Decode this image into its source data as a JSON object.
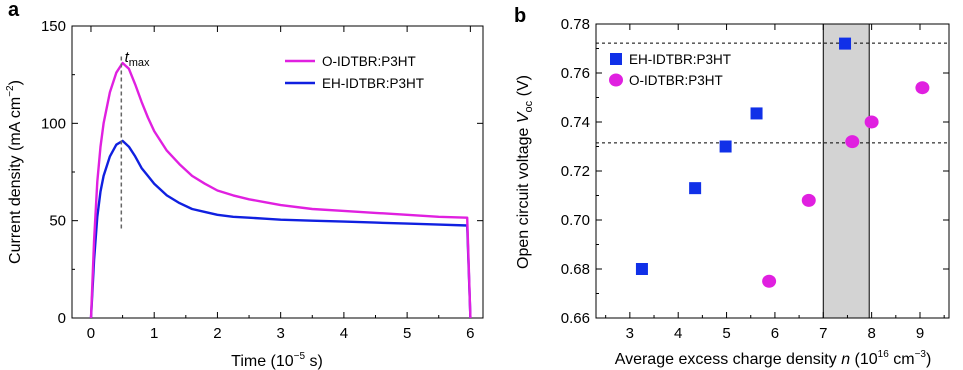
{
  "chart_data": [
    {
      "panel": "a",
      "type": "line",
      "xlabel": "Time (10−5 s)",
      "xlabel_parts": {
        "main": "Time (10",
        "exp": "−5",
        "tail": " s)"
      },
      "ylabel": "Current density (mA cm−2)",
      "ylabel_parts": {
        "main": "Current density (mA cm",
        "exp": "−2",
        "tail": ")"
      },
      "xlim": [
        -0.3,
        6.2
      ],
      "ylim": [
        0,
        150
      ],
      "xticks": [
        0,
        1,
        2,
        3,
        4,
        5,
        6
      ],
      "yticks": [
        0,
        50,
        100,
        150
      ],
      "annotation": {
        "text": "t",
        "sub": "max",
        "x": 0.5,
        "y": 135,
        "line_x": 0.48,
        "line_y": [
          46,
          135
        ]
      },
      "legend_position": "top-right",
      "series": [
        {
          "name": "O-IDTBR:P3HT",
          "color": "#e020e0",
          "x": [
            0,
            0.05,
            0.1,
            0.15,
            0.2,
            0.3,
            0.4,
            0.5,
            0.6,
            0.7,
            0.8,
            0.9,
            1.0,
            1.2,
            1.4,
            1.6,
            1.8,
            2.0,
            2.25,
            2.5,
            2.75,
            3.0,
            3.5,
            4.0,
            4.5,
            5.0,
            5.5,
            5.95,
            6.0
          ],
          "y": [
            0,
            40,
            70,
            88,
            100,
            116,
            126,
            131,
            128,
            120,
            111,
            103,
            96,
            86,
            79,
            73,
            69,
            65.5,
            63,
            61,
            59.5,
            58,
            56,
            55,
            54,
            53,
            52,
            51.5,
            0
          ]
        },
        {
          "name": "EH-IDTBR:P3HT",
          "color": "#1020e0",
          "x": [
            0,
            0.05,
            0.1,
            0.15,
            0.2,
            0.3,
            0.4,
            0.5,
            0.6,
            0.7,
            0.8,
            0.9,
            1.0,
            1.2,
            1.4,
            1.6,
            1.8,
            2.0,
            2.25,
            2.5,
            2.75,
            3.0,
            3.5,
            4.0,
            4.5,
            5.0,
            5.5,
            5.95,
            6.0
          ],
          "y": [
            0,
            30,
            52,
            65,
            73,
            83,
            89,
            91,
            88,
            83,
            77,
            73,
            69,
            63,
            59,
            56,
            54.5,
            53,
            52,
            51.5,
            51,
            50.5,
            50,
            49.5,
            49,
            48.5,
            48,
            47.5,
            0
          ]
        }
      ]
    },
    {
      "panel": "b",
      "type": "scatter",
      "xlabel": "Average excess charge density n (1016 cm−3)",
      "xlabel_parts": {
        "main": "Average excess charge density ",
        "italic": "n",
        "mid": " (10",
        "exp1": "16",
        "mid2": " cm",
        "exp2": "−3",
        "tail": ")"
      },
      "ylabel": "Open circuit voltage Voc (V)",
      "ylabel_parts": {
        "main": "Open circuit voltage ",
        "italic": "V",
        "sub": "oc",
        "tail": " (V)"
      },
      "xlim": [
        2.3,
        9.6
      ],
      "ylim": [
        0.66,
        0.78
      ],
      "xticks": [
        3,
        4,
        5,
        6,
        7,
        8,
        9
      ],
      "yticks": [
        0.66,
        0.68,
        0.7,
        0.72,
        0.74,
        0.76,
        0.78
      ],
      "ytick_labels": [
        "0.66",
        "0.68",
        "0.70",
        "0.72",
        "0.74",
        "0.76",
        "0.78"
      ],
      "shaded_region_x": [
        7.0,
        7.95
      ],
      "hlines_y": [
        0.7315,
        0.7722
      ],
      "legend_position": "top-left",
      "series": [
        {
          "name": "EH-IDTBR:P3HT",
          "color": "#1030e8",
          "marker": "square",
          "x": [
            3.25,
            4.35,
            4.98,
            5.62,
            7.45
          ],
          "y": [
            0.68,
            0.713,
            0.73,
            0.7435,
            0.772
          ]
        },
        {
          "name": "O-IDTBR:P3HT",
          "color": "#e020e0",
          "marker": "circle",
          "x": [
            5.88,
            6.7,
            7.6,
            8.0,
            9.05
          ],
          "y": [
            0.675,
            0.708,
            0.732,
            0.74,
            0.754
          ]
        }
      ]
    }
  ]
}
